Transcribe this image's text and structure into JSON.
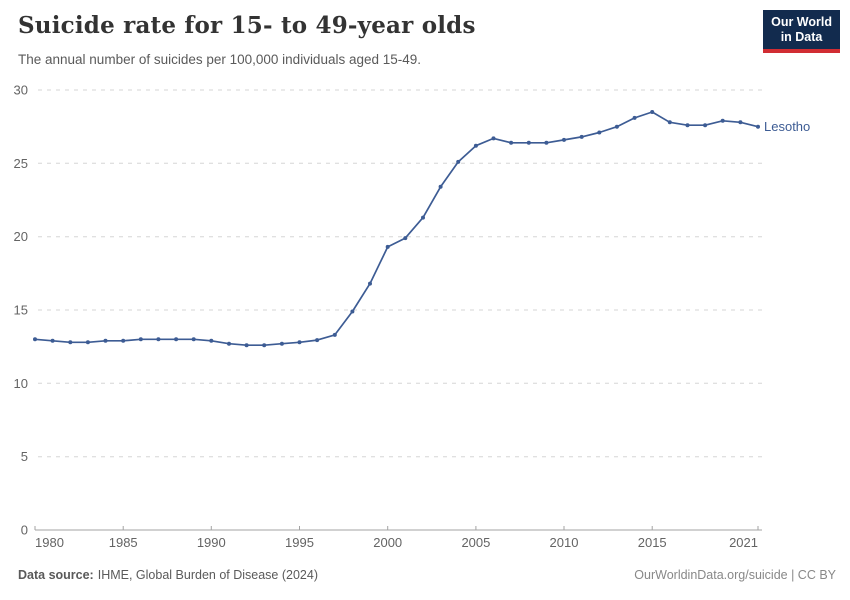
{
  "header": {
    "title": "Suicide rate for 15- to 49-year olds",
    "subtitle": "The annual number of suicides per 100,000 individuals aged 15-49.",
    "logo": {
      "line1": "Our World",
      "line2": "in Data"
    }
  },
  "chart_data": {
    "type": "line",
    "title": "Suicide rate for 15- to 49-year olds",
    "subtitle": "The annual number of suicides per 100,000 individuals aged 15-49.",
    "xlabel": "",
    "ylabel": "",
    "xlim": [
      1980,
      2021
    ],
    "ylim": [
      0,
      30
    ],
    "x_ticks": [
      1980,
      1985,
      1990,
      1995,
      2000,
      2005,
      2010,
      2015,
      2021
    ],
    "y_ticks": [
      0,
      5,
      10,
      15,
      20,
      25,
      30
    ],
    "grid": "horizontal-dashed",
    "legend": "end-of-line-label",
    "series": [
      {
        "name": "Lesotho",
        "x": [
          1980,
          1981,
          1982,
          1983,
          1984,
          1985,
          1986,
          1987,
          1988,
          1989,
          1990,
          1991,
          1992,
          1993,
          1994,
          1995,
          1996,
          1997,
          1998,
          1999,
          2000,
          2001,
          2002,
          2003,
          2004,
          2005,
          2006,
          2007,
          2008,
          2009,
          2010,
          2011,
          2012,
          2013,
          2014,
          2015,
          2016,
          2017,
          2018,
          2019,
          2020,
          2021
        ],
        "values": [
          13.0,
          12.9,
          12.8,
          12.8,
          12.9,
          12.9,
          13.0,
          13.0,
          13.0,
          13.0,
          12.9,
          12.7,
          12.6,
          12.6,
          12.7,
          12.8,
          12.95,
          13.3,
          14.9,
          16.8,
          19.3,
          19.9,
          21.3,
          23.4,
          25.1,
          26.2,
          26.7,
          26.4,
          26.4,
          26.4,
          26.6,
          26.8,
          27.1,
          27.5,
          28.1,
          28.5,
          27.8,
          27.6,
          27.6,
          27.9,
          27.8,
          27.5
        ]
      }
    ]
  },
  "footer": {
    "source_label": "Data source:",
    "source_value": "IHME, Global Burden of Disease (2024)",
    "license": "OurWorldinData.org/suicide | CC BY"
  },
  "colors": {
    "line": "#3d5c94",
    "grid": "#d5d5d5",
    "axis": "#a3a3a3",
    "tick_text": "#646464",
    "title": "#333333",
    "subtitle": "#5a5a5a",
    "logo_bg": "#122b4e",
    "logo_red": "#d12d33",
    "license": "#888888"
  }
}
